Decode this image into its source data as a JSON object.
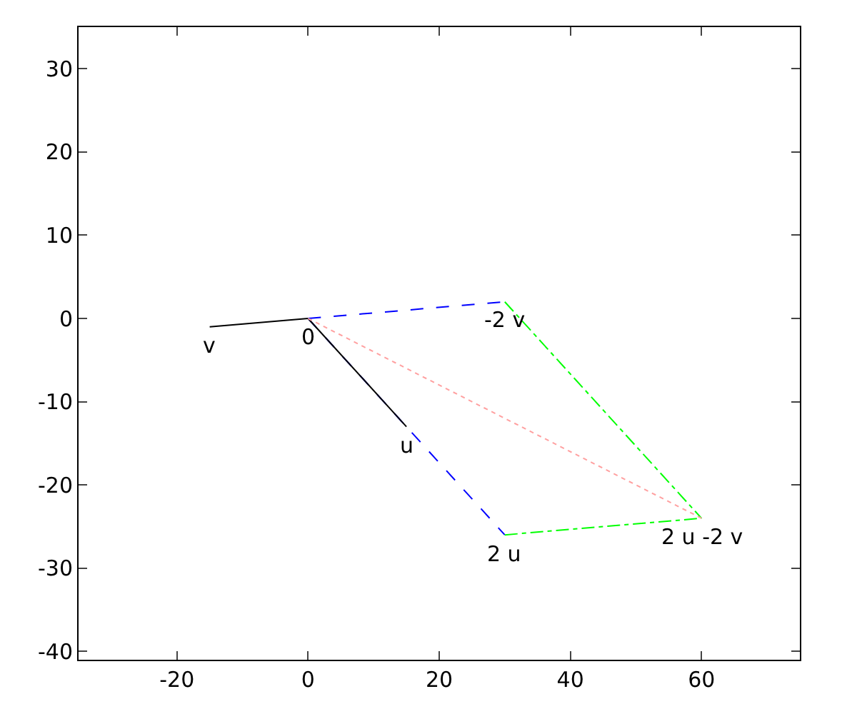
{
  "chart_data": {
    "type": "line",
    "xlim": [
      -35,
      75
    ],
    "ylim": [
      -41,
      35
    ],
    "xticks": [
      -20,
      0,
      20,
      40,
      60
    ],
    "yticks": [
      -40,
      -30,
      -20,
      -10,
      0,
      10,
      20,
      30
    ],
    "grid": false,
    "marker": "none",
    "series": [
      {
        "color": "#0000ff",
        "line_style": "dashed",
        "x": [
          0,
          30
        ],
        "values": [
          0,
          -26
        ]
      },
      {
        "color": "#0000ff",
        "line_style": "dashed",
        "x": [
          0,
          30
        ],
        "values": [
          0,
          2
        ]
      },
      {
        "color": "#000000",
        "line_style": "solid",
        "x": [
          0,
          -15
        ],
        "values": [
          0,
          -1
        ]
      },
      {
        "color": "#000000",
        "line_style": "solid",
        "x": [
          0,
          15
        ],
        "values": [
          0,
          -13
        ]
      },
      {
        "color": "#00ff00",
        "line_style": "dashdot",
        "x": [
          30,
          60
        ],
        "values": [
          2,
          -24
        ]
      },
      {
        "color": "#00ff00",
        "line_style": "dashdot",
        "x": [
          30,
          60
        ],
        "values": [
          -26,
          -24
        ]
      },
      {
        "color": "#ffa0a0",
        "line_style": "dotted",
        "x": [
          0,
          60
        ],
        "values": [
          0,
          -24
        ]
      }
    ],
    "annotations": [
      {
        "text": "0",
        "x": 0,
        "y": 0
      },
      {
        "text": "v",
        "x": -15,
        "y": -1
      },
      {
        "text": "u",
        "x": 15,
        "y": -13
      },
      {
        "text": "2 u",
        "x": 30,
        "y": -26
      },
      {
        "text": "-2 v",
        "x": 30,
        "y": 2
      },
      {
        "text": "2 u -2 v",
        "x": 60,
        "y": -24
      }
    ]
  }
}
